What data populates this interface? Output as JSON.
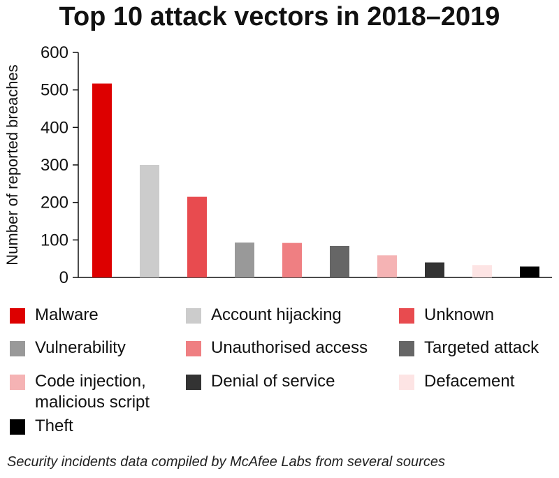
{
  "note": "Security incidents data compiled by McAfee Labs from several sources",
  "chart_data": {
    "type": "bar",
    "title": "Top 10 attack vectors in 2018–2019",
    "ylabel": "Number of reported breaches",
    "xlabel": "",
    "ylim": [
      0,
      600
    ],
    "yticks": [
      0,
      100,
      200,
      300,
      400,
      500,
      600
    ],
    "grid": false,
    "legend_position": "bottom",
    "categories": [
      "Malware",
      "Account hijacking",
      "Unknown",
      "Vulnerability",
      "Unauthorised access",
      "Targeted attack",
      "Code injection,\nmalicious script",
      "Denial of service",
      "Defacement",
      "Theft"
    ],
    "values": [
      517,
      300,
      215,
      93,
      92,
      84,
      59,
      40,
      33,
      29
    ],
    "colors": [
      "#dd0000",
      "#cccccc",
      "#e84b4f",
      "#999999",
      "#ef7f82",
      "#666666",
      "#f5b3b4",
      "#333333",
      "#fde4e4",
      "#000000"
    ]
  }
}
